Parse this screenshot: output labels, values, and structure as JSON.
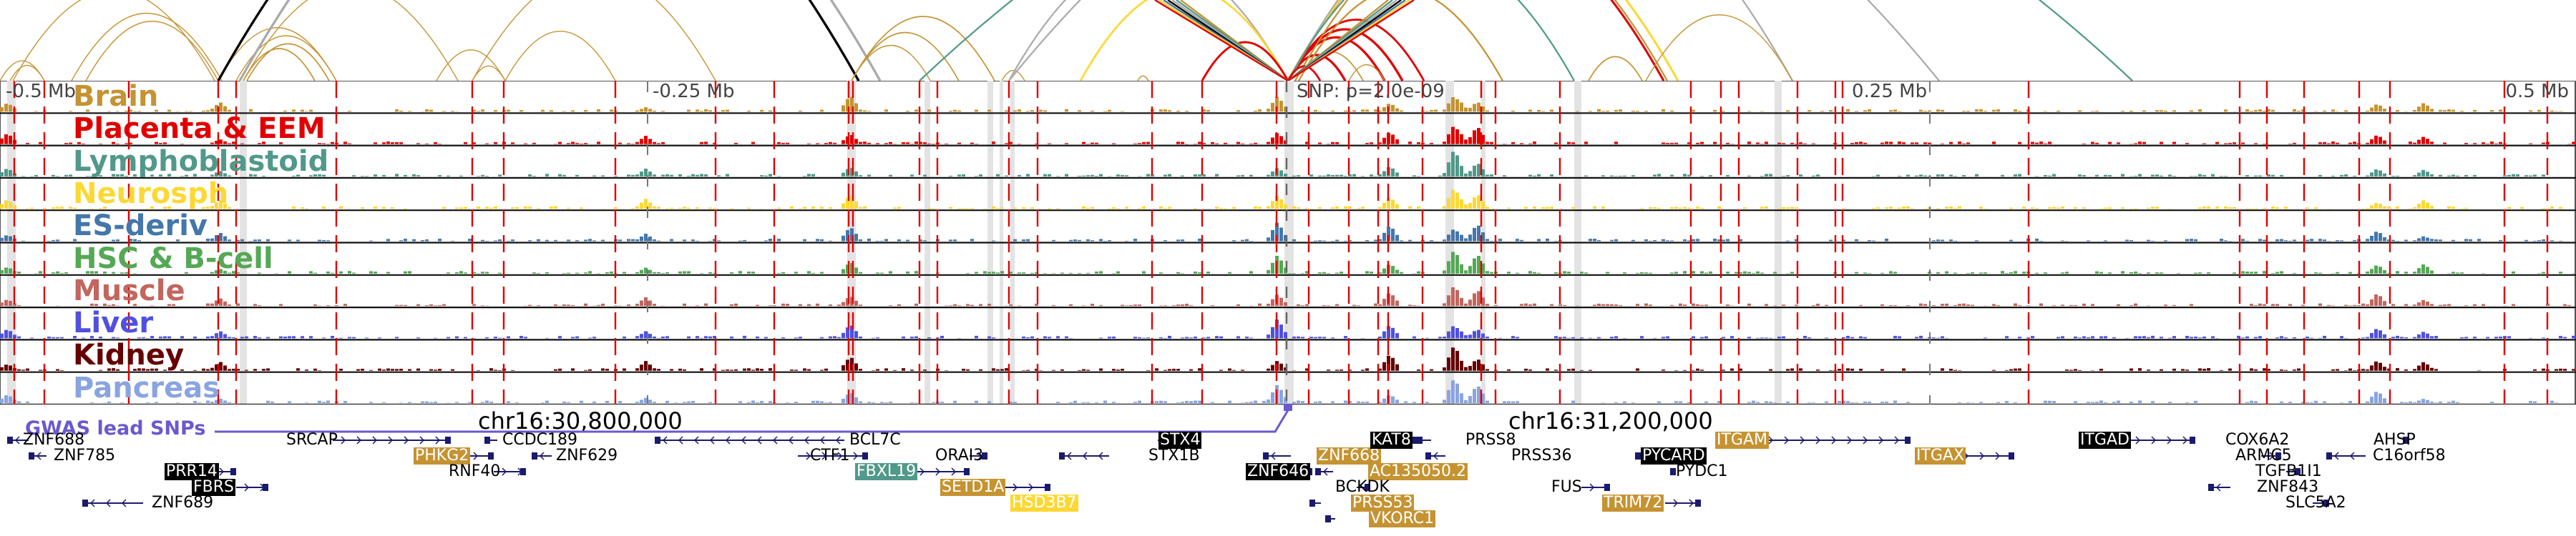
{
  "axis": {
    "labels": [
      "-0.5 Mb",
      "-0.25 Mb",
      "0.25 Mb",
      "0.5 Mb"
    ],
    "snp_label": "SNP: p=2.0e-09",
    "coords": [
      "chr16:30,800,000",
      "chr16:31,200,000"
    ]
  },
  "tracks": [
    {
      "name": "Brain",
      "color": "#c59332"
    },
    {
      "name": "Placenta & EEM",
      "color": "#e00000"
    },
    {
      "name": "Lymphoblastoid",
      "color": "#51998a"
    },
    {
      "name": "Neurosph",
      "color": "#fdd835"
    },
    {
      "name": "ES-deriv",
      "color": "#4477aa"
    },
    {
      "name": "HSC & B-cell",
      "color": "#55a855"
    },
    {
      "name": "Muscle",
      "color": "#c2665e"
    },
    {
      "name": "Liver",
      "color": "#5050e0"
    },
    {
      "name": "Kidney",
      "color": "#660000"
    },
    {
      "name": "Pancreas",
      "color": "#8aa4e0"
    }
  ],
  "gwas": {
    "label": "GWAS lead SNPs",
    "color": "#6a5acd"
  },
  "genes": [
    {
      "name": "ZNF688",
      "style": "plain",
      "dir": "left"
    },
    {
      "name": "ZNF785",
      "style": "plain",
      "dir": "left"
    },
    {
      "name": "PRR14",
      "style": "black",
      "dir": "right"
    },
    {
      "name": "FBRS",
      "style": "black",
      "dir": "right"
    },
    {
      "name": "ZNF689",
      "style": "plain",
      "dir": "left"
    },
    {
      "name": "SRCAP",
      "style": "plain",
      "dir": "right"
    },
    {
      "name": "PHKG2",
      "style": "gold",
      "dir": "right"
    },
    {
      "name": "RNF40",
      "style": "plain",
      "dir": "right"
    },
    {
      "name": "CCDC189",
      "style": "plain",
      "dir": "left"
    },
    {
      "name": "ZNF629",
      "style": "plain",
      "dir": "left"
    },
    {
      "name": "BCL7C",
      "style": "plain",
      "dir": "left"
    },
    {
      "name": "CTF1",
      "style": "plain",
      "dir": "right"
    },
    {
      "name": "FBXL19",
      "style": "teal",
      "dir": "right"
    },
    {
      "name": "ORAI3",
      "style": "plain",
      "dir": "right"
    },
    {
      "name": "SETD1A",
      "style": "gold",
      "dir": "right"
    },
    {
      "name": "HSD3B7",
      "style": "yellow",
      "dir": "right"
    },
    {
      "name": "STX4",
      "style": "black",
      "dir": "right"
    },
    {
      "name": "STX1B",
      "style": "plain",
      "dir": "left"
    },
    {
      "name": "ZNF646",
      "style": "black",
      "dir": "right"
    },
    {
      "name": "ZNF668",
      "style": "gold",
      "dir": "left"
    },
    {
      "name": "KAT8",
      "style": "black",
      "dir": "right"
    },
    {
      "name": "AC135050.2",
      "style": "gold",
      "dir": "left"
    },
    {
      "name": "BCKDK",
      "style": "plain",
      "dir": "right"
    },
    {
      "name": "PRSS53",
      "style": "gold",
      "dir": "left"
    },
    {
      "name": "VKORC1",
      "style": "gold",
      "dir": "left"
    },
    {
      "name": "PRSS8",
      "style": "plain",
      "dir": "left"
    },
    {
      "name": "PRSS36",
      "style": "plain",
      "dir": "left"
    },
    {
      "name": "FUS",
      "style": "plain",
      "dir": "right"
    },
    {
      "name": "TRIM72",
      "style": "gold",
      "dir": "right"
    },
    {
      "name": "PYCARD",
      "style": "black",
      "dir": "left"
    },
    {
      "name": "PYDC1",
      "style": "plain",
      "dir": "left"
    },
    {
      "name": "ITGAM",
      "style": "gold",
      "dir": "right"
    },
    {
      "name": "ITGAX",
      "style": "gold",
      "dir": "right"
    },
    {
      "name": "ITGAD",
      "style": "black",
      "dir": "right"
    },
    {
      "name": "COX6A2",
      "style": "plain",
      "dir": "left"
    },
    {
      "name": "ARMC5",
      "style": "plain",
      "dir": "right"
    },
    {
      "name": "TGFB1I1",
      "style": "plain",
      "dir": "right"
    },
    {
      "name": "ZNF843",
      "style": "plain",
      "dir": "left"
    },
    {
      "name": "SLC5A2",
      "style": "plain",
      "dir": "right"
    },
    {
      "name": "AHSP",
      "style": "plain",
      "dir": "right"
    },
    {
      "name": "C16orf58",
      "style": "plain",
      "dir": "left"
    }
  ]
}
